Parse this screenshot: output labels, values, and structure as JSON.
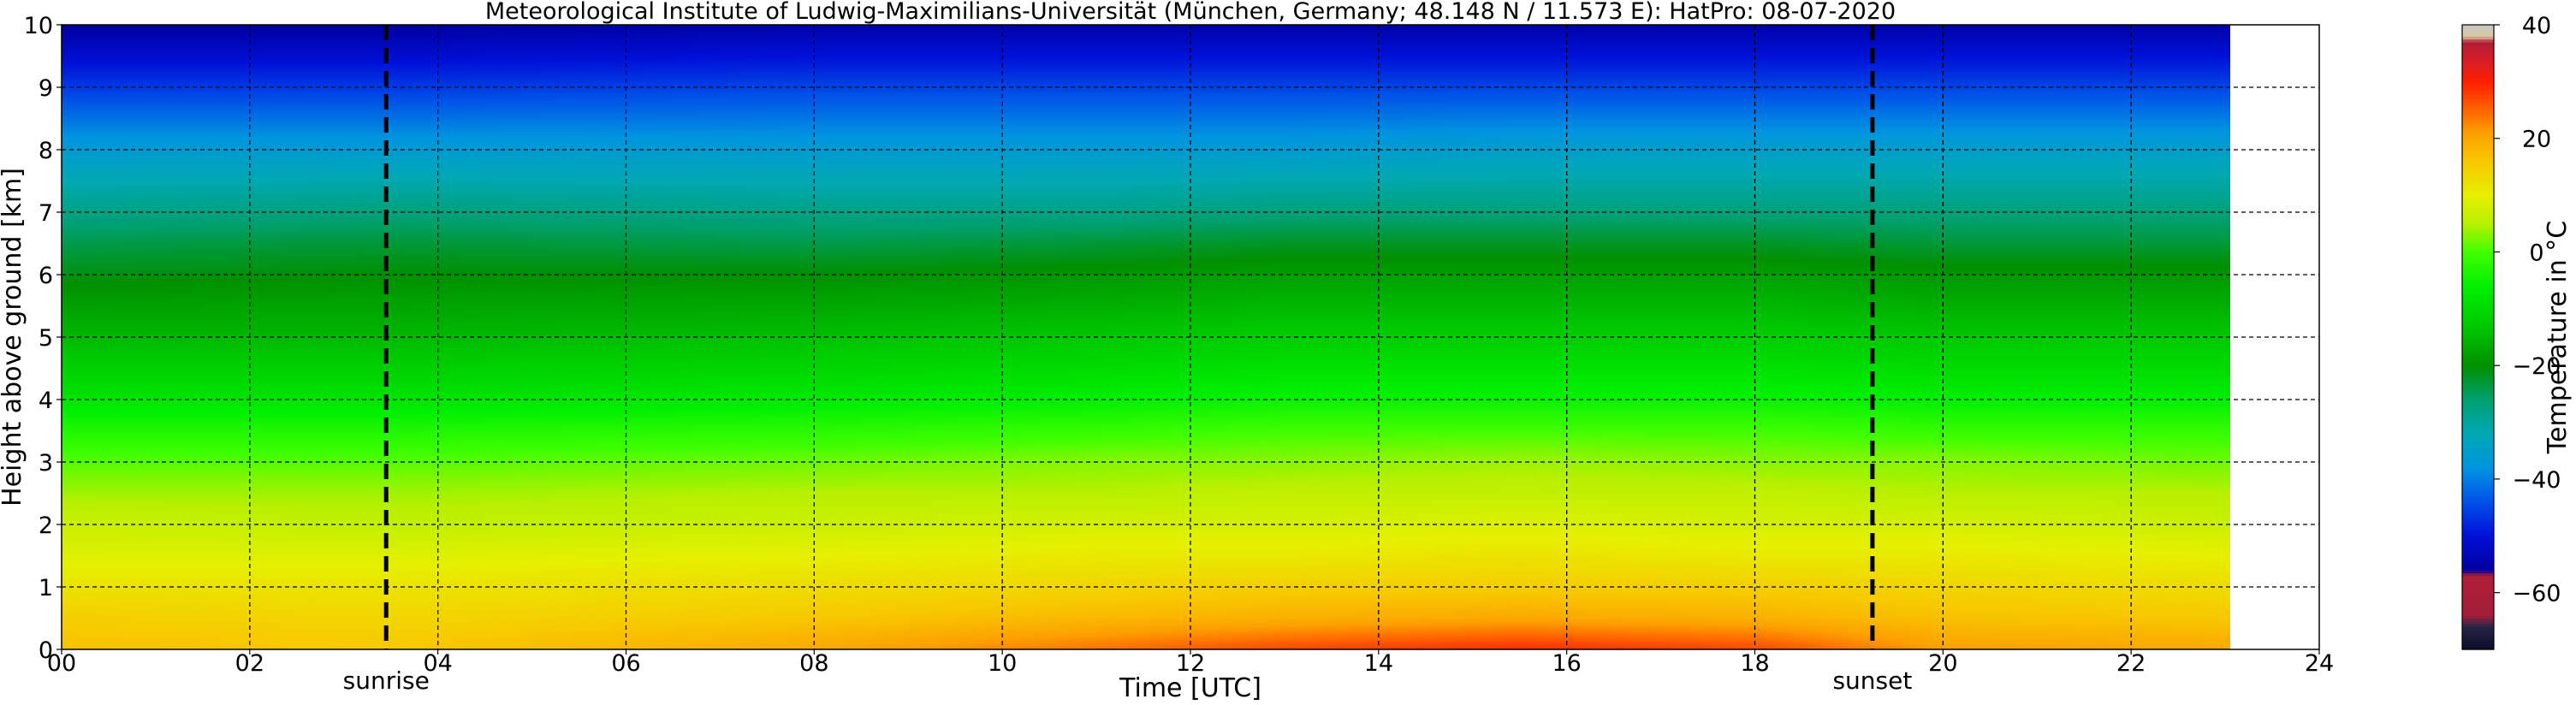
{
  "chart_data": {
    "type": "heatmap",
    "title": "Meteorological Institute of Ludwig-Maximilians-Universität (München, Germany; 48.148 N / 11.573 E):    HatPro: 08-07-2020",
    "xlabel": "Time [UTC]",
    "ylabel": "Height above ground [km]",
    "xlim": [
      0,
      24
    ],
    "ylim": [
      0,
      10
    ],
    "x_ticks": [
      0,
      2,
      4,
      6,
      8,
      10,
      12,
      14,
      16,
      18,
      20,
      22,
      24
    ],
    "x_tick_labels": [
      "00",
      "02",
      "04",
      "06",
      "08",
      "10",
      "12",
      "14",
      "16",
      "18",
      "20",
      "22",
      "24"
    ],
    "y_ticks": [
      0,
      1,
      2,
      3,
      4,
      5,
      6,
      7,
      8,
      9,
      10
    ],
    "y_tick_labels": [
      "0",
      "1",
      "2",
      "3",
      "4",
      "5",
      "6",
      "7",
      "8",
      "9",
      "10"
    ],
    "grid": true,
    "data_x_end": 23.05,
    "heights_km": [
      0,
      0.5,
      1,
      1.5,
      2,
      2.5,
      3,
      3.5,
      4,
      5,
      6,
      6.5,
      7,
      8,
      9,
      10
    ],
    "temperature_profiles": [
      {
        "time": 0,
        "temps": [
          17,
          15,
          12,
          9,
          7,
          4,
          1,
          -3,
          -8,
          -15,
          -21,
          -24,
          -28,
          -36,
          -46,
          -56
        ]
      },
      {
        "time": 3.5,
        "temps": [
          16,
          14,
          12,
          9,
          6,
          4,
          1,
          -3,
          -8,
          -15,
          -20,
          -23,
          -27,
          -36,
          -46,
          -56
        ]
      },
      {
        "time": 8,
        "temps": [
          20,
          16,
          13,
          10,
          7,
          5,
          2,
          -2,
          -7,
          -14,
          -20,
          -24,
          -28,
          -36,
          -45,
          -55
        ]
      },
      {
        "time": 11,
        "temps": [
          24,
          18,
          14,
          11,
          8,
          5,
          3,
          -1,
          -6,
          -13,
          -19,
          -23,
          -28,
          -36,
          -45,
          -55
        ]
      },
      {
        "time": 13,
        "temps": [
          27,
          19,
          15,
          11,
          8,
          6,
          3,
          0,
          -5,
          -12,
          -18,
          -22,
          -27,
          -36,
          -45,
          -55
        ]
      },
      {
        "time": 15.5,
        "temps": [
          29,
          20,
          15,
          12,
          9,
          6,
          4,
          0,
          -5,
          -12,
          -18,
          -22,
          -27,
          -35,
          -45,
          -55
        ]
      },
      {
        "time": 18,
        "temps": [
          27,
          19,
          15,
          11,
          8,
          6,
          3,
          0,
          -5,
          -12,
          -18,
          -22,
          -27,
          -35,
          -45,
          -55
        ]
      },
      {
        "time": 20,
        "temps": [
          21,
          17,
          14,
          11,
          8,
          5,
          3,
          -1,
          -6,
          -13,
          -19,
          -23,
          -27,
          -35,
          -45,
          -55
        ]
      },
      {
        "time": 23.05,
        "temps": [
          20,
          16,
          13,
          10,
          7,
          5,
          2,
          -1,
          -6,
          -13,
          -19,
          -23,
          -27,
          -35,
          -45,
          -55
        ]
      }
    ],
    "annotations": [
      {
        "label": "sunrise",
        "x": 3.45
      },
      {
        "label": "sunset",
        "x": 19.25
      }
    ],
    "colorbar": {
      "label": "Temperature in °C",
      "min": -70,
      "max": 40,
      "ticks": [
        40,
        20,
        0,
        -20,
        -40,
        -60
      ],
      "tick_labels": [
        "40",
        "20",
        "0",
        "−20",
        "−40",
        "−60"
      ],
      "stops": [
        {
          "t": -70,
          "color": "#0b0b2a"
        },
        {
          "t": -66,
          "color": "#262444"
        },
        {
          "t": -64,
          "color": "#a31e3a"
        },
        {
          "t": -57,
          "color": "#b01e36"
        },
        {
          "t": -56,
          "color": "#0000a0"
        },
        {
          "t": -50,
          "color": "#0010d8"
        },
        {
          "t": -44,
          "color": "#0050e8"
        },
        {
          "t": -38,
          "color": "#0094e0"
        },
        {
          "t": -32,
          "color": "#00a8b4"
        },
        {
          "t": -26,
          "color": "#00a070"
        },
        {
          "t": -20,
          "color": "#009000"
        },
        {
          "t": -13,
          "color": "#00c800"
        },
        {
          "t": -6,
          "color": "#00f000"
        },
        {
          "t": 0,
          "color": "#40ff00"
        },
        {
          "t": 5,
          "color": "#b8f000"
        },
        {
          "t": 10,
          "color": "#e6f000"
        },
        {
          "t": 16,
          "color": "#f8c800"
        },
        {
          "t": 21,
          "color": "#fca000"
        },
        {
          "t": 25,
          "color": "#ff6400"
        },
        {
          "t": 28,
          "color": "#ff3a00"
        },
        {
          "t": 30,
          "color": "#ff1e00"
        },
        {
          "t": 34,
          "color": "#d41e28"
        },
        {
          "t": 37,
          "color": "#b01e36"
        },
        {
          "t": 38,
          "color": "#d8c8a0"
        },
        {
          "t": 40,
          "color": "#c8c8c8"
        }
      ]
    }
  }
}
